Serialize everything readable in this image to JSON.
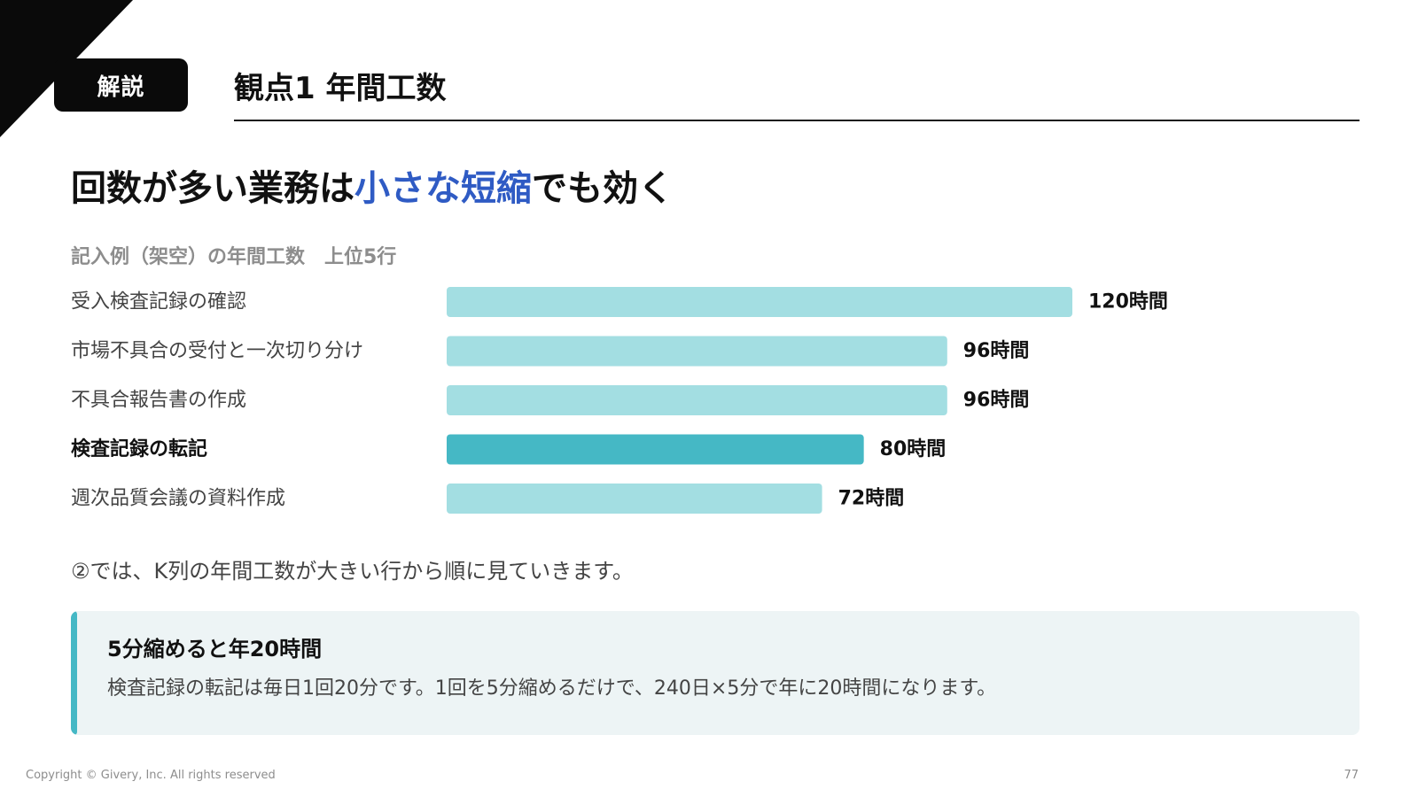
{
  "badge": "解説",
  "section_title": "観点1 年間工数",
  "headline": {
    "before": "回数が多い業務は",
    "highlight": "小さな短縮",
    "after": "でも効く"
  },
  "chart_caption": "記入例（架空）の年間工数　上位5行",
  "chart_data": {
    "type": "bar",
    "orientation": "horizontal",
    "title": "記入例（架空）の年間工数　上位5行",
    "categories": [
      "受入検査記録の確認",
      "市場不具合の受付と一次切り分け",
      "不具合報告書の作成",
      "検査記録の転記",
      "週次品質会議の資料作成"
    ],
    "values": [
      120,
      96,
      96,
      80,
      72
    ],
    "value_labels": [
      "120時間",
      "96時間",
      "96時間",
      "80時間",
      "72時間"
    ],
    "unit": "時間",
    "highlight_index": 3,
    "xlim": [
      0,
      120
    ],
    "grid": false,
    "colors": {
      "bar": "#a3dee2",
      "highlight": "#45b8c5"
    }
  },
  "note": "②では、K列の年間工数が大きい行から順に見ていきます。",
  "callout": {
    "title": "5分縮めると年20時間",
    "body": "検査記録の転記は毎日1回20分です。1回を5分縮めるだけで、240日×5分で年に20時間になります。"
  },
  "footer": {
    "copyright": "Copyright © Givery, Inc. All rights reserved",
    "page": "77"
  },
  "colors": {
    "accent_blue": "#2f5bc4",
    "accent_teal": "#45b8c5"
  }
}
